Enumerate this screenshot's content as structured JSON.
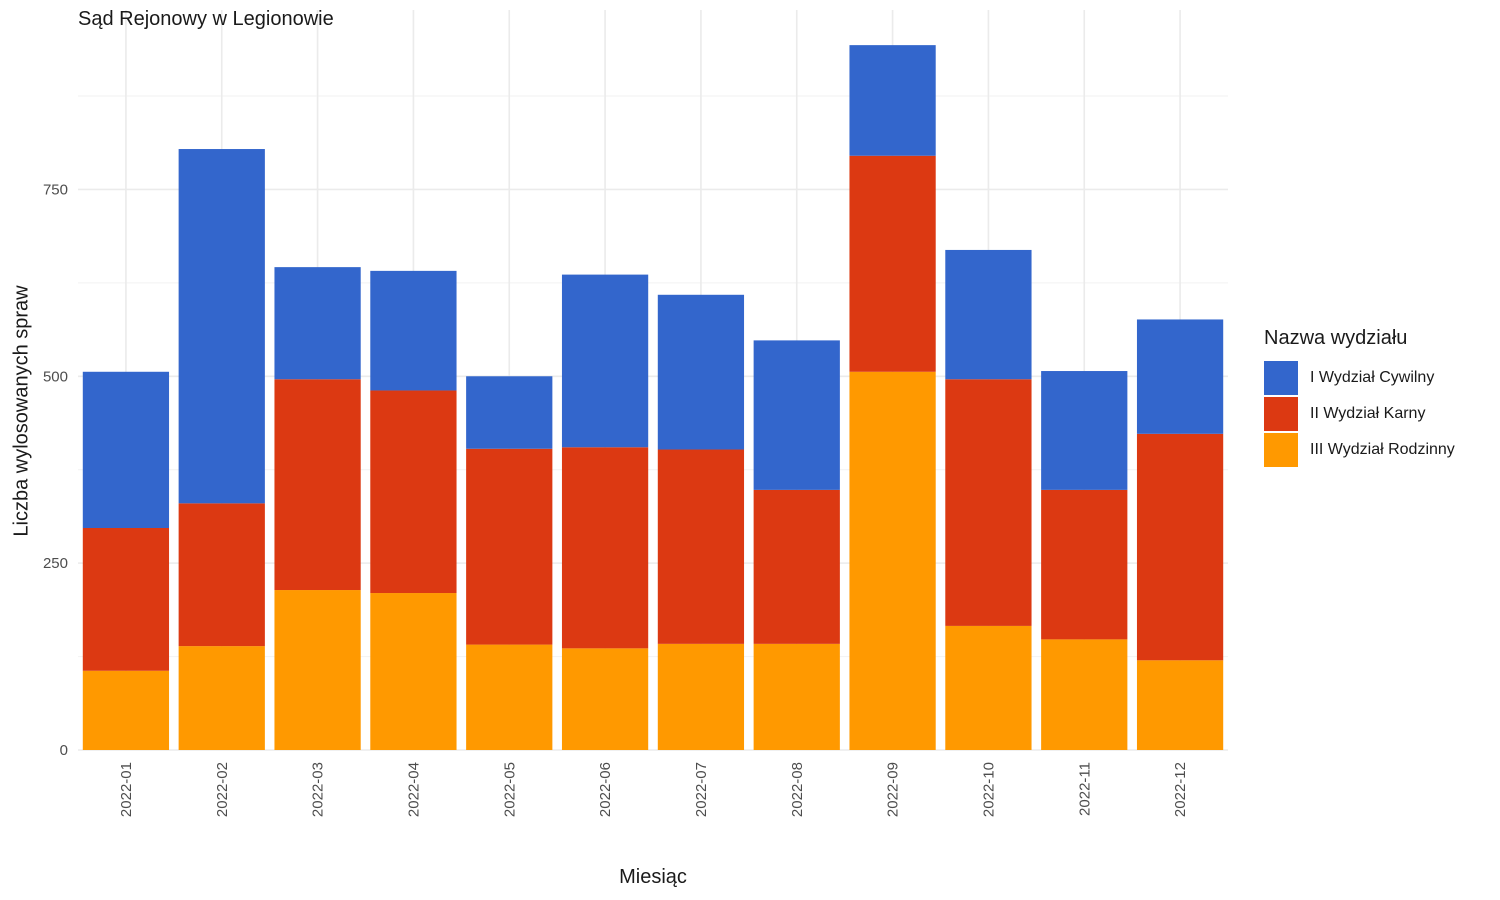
{
  "chart_data": {
    "type": "bar",
    "stacked": true,
    "title": "Sąd Rejonowy w Legionowie",
    "xlabel": "Miesiąc",
    "ylabel": "Liczba wylosowanych spraw",
    "ylim": [
      0,
      990
    ],
    "yticks": [
      0,
      250,
      500,
      750
    ],
    "grid": true,
    "legend_title": "Nazwa wydziału",
    "legend_position": "right",
    "categories": [
      "2022-01",
      "2022-02",
      "2022-03",
      "2022-04",
      "2022-05",
      "2022-06",
      "2022-07",
      "2022-08",
      "2022-09",
      "2022-10",
      "2022-11",
      "2022-12"
    ],
    "series": [
      {
        "name": "III Wydział Rodzinny",
        "color": "#FF9900",
        "values": [
          106,
          139,
          214,
          210,
          141,
          136,
          142,
          142,
          506,
          166,
          148,
          120
        ]
      },
      {
        "name": "II Wydział Karny",
        "color": "#DC3912",
        "values": [
          191,
          191,
          282,
          271,
          262,
          269,
          260,
          206,
          289,
          330,
          200,
          303
        ]
      },
      {
        "name": "I Wydział Cywilny",
        "color": "#3366CC",
        "values": [
          209,
          474,
          150,
          160,
          97,
          231,
          207,
          200,
          148,
          173,
          159,
          153
        ]
      }
    ],
    "legend_order": [
      "I Wydział Cywilny",
      "II Wydział Karny",
      "III Wydział Rodzinny"
    ]
  }
}
